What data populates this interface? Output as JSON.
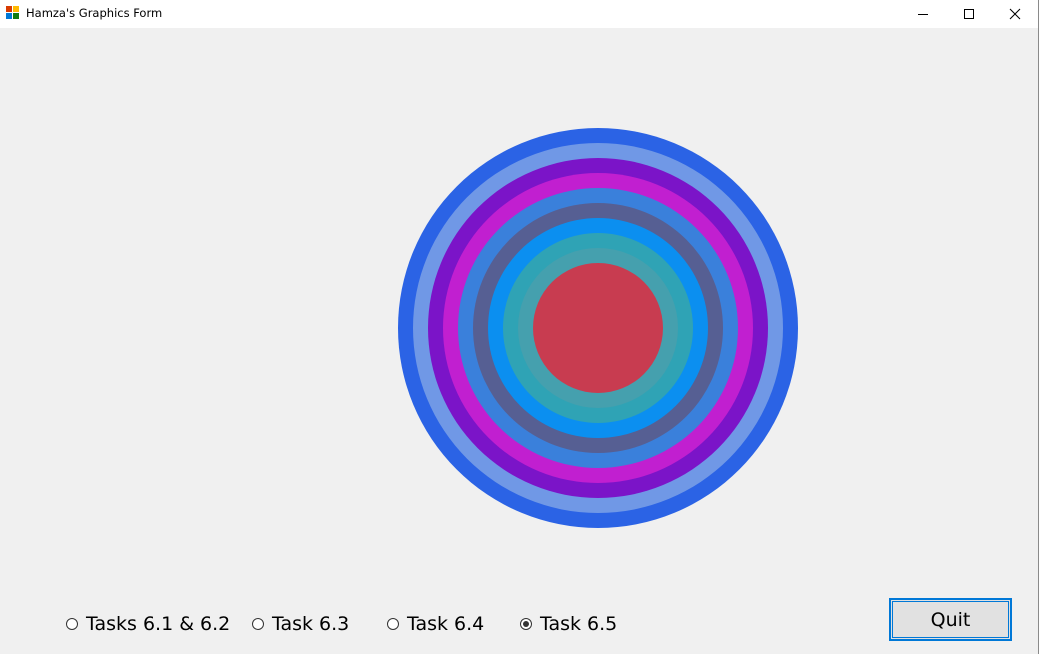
{
  "window": {
    "title": "Hamza's Graphics Form"
  },
  "canvas": {
    "rings": [
      {
        "color": "#2b63e5"
      },
      {
        "color": "#7098e6"
      },
      {
        "color": "#7b14c8"
      },
      {
        "color": "#c11fd0"
      },
      {
        "color": "#3a80db"
      },
      {
        "color": "#565f93"
      },
      {
        "color": "#0b8ff0"
      },
      {
        "color": "#2fa3b5"
      },
      {
        "color": "#45a0ae"
      },
      {
        "color": "#c83c50"
      }
    ]
  },
  "options": [
    {
      "label": "Tasks 6.1 & 6.2",
      "checked": false
    },
    {
      "label": "Task 6.3",
      "checked": false
    },
    {
      "label": "Task 6.4",
      "checked": false
    },
    {
      "label": "Task 6.5",
      "checked": true
    }
  ],
  "buttons": {
    "quit_label": "Quit"
  }
}
